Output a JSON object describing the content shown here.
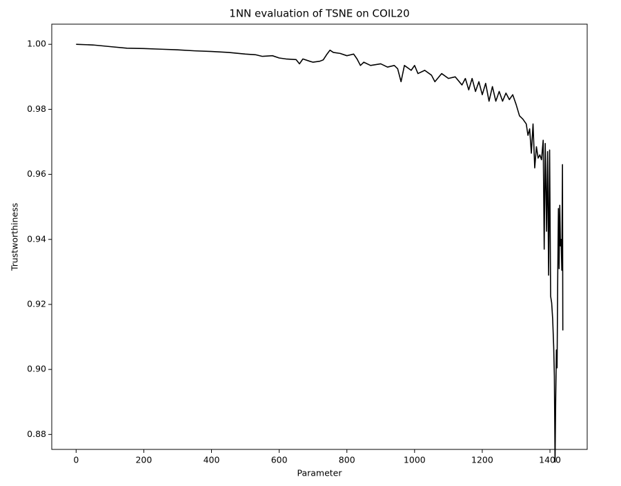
{
  "chart_data": {
    "type": "line",
    "title": "1NN evaluation of TSNE on COIL20",
    "x_label": "Parameter",
    "y_label": "Trustworthiness",
    "color": "#000000",
    "x": [
      0,
      50,
      100,
      150,
      200,
      250,
      300,
      350,
      400,
      450,
      500,
      530,
      550,
      580,
      600,
      620,
      650,
      660,
      670,
      690,
      700,
      720,
      730,
      740,
      750,
      760,
      780,
      800,
      820,
      830,
      840,
      850,
      870,
      900,
      920,
      940,
      950,
      960,
      970,
      990,
      1000,
      1010,
      1030,
      1050,
      1060,
      1080,
      1100,
      1120,
      1140,
      1150,
      1160,
      1170,
      1180,
      1190,
      1200,
      1210,
      1220,
      1230,
      1240,
      1250,
      1260,
      1270,
      1280,
      1290,
      1300,
      1310,
      1320,
      1330,
      1335,
      1340,
      1345,
      1350,
      1355,
      1360,
      1365,
      1370,
      1375,
      1380,
      1383,
      1386,
      1390,
      1393,
      1396,
      1399,
      1402,
      1405,
      1408,
      1411,
      1413,
      1415,
      1417,
      1419,
      1421,
      1423,
      1425,
      1427,
      1429,
      1431,
      1433,
      1435,
      1437,
      1438
    ],
    "values": [
      1.0,
      0.9998,
      0.9993,
      0.9988,
      0.9987,
      0.9985,
      0.9983,
      0.998,
      0.9978,
      0.9975,
      0.997,
      0.9968,
      0.9963,
      0.9965,
      0.9958,
      0.9955,
      0.9953,
      0.994,
      0.9955,
      0.9948,
      0.9945,
      0.9948,
      0.9952,
      0.9968,
      0.9982,
      0.9975,
      0.9972,
      0.9965,
      0.997,
      0.9955,
      0.9935,
      0.9945,
      0.9935,
      0.994,
      0.993,
      0.9935,
      0.9925,
      0.9885,
      0.9935,
      0.992,
      0.9935,
      0.991,
      0.992,
      0.9905,
      0.9885,
      0.991,
      0.9895,
      0.99,
      0.9875,
      0.9895,
      0.986,
      0.9895,
      0.9855,
      0.9885,
      0.9845,
      0.988,
      0.9825,
      0.987,
      0.9825,
      0.9855,
      0.9825,
      0.985,
      0.983,
      0.9845,
      0.9815,
      0.978,
      0.977,
      0.9755,
      0.972,
      0.974,
      0.9665,
      0.9755,
      0.962,
      0.9685,
      0.965,
      0.966,
      0.9645,
      0.9705,
      0.937,
      0.9695,
      0.9425,
      0.967,
      0.929,
      0.9675,
      0.9225,
      0.9205,
      0.9155,
      0.907,
      0.898,
      0.8715,
      0.891,
      0.906,
      0.9005,
      0.929,
      0.9495,
      0.931,
      0.9505,
      0.938,
      0.94,
      0.9305,
      0.963,
      0.912
    ],
    "xlim": [
      -72,
      1510
    ],
    "ylim": [
      0.8754,
      1.0062
    ],
    "xticks": [
      0,
      200,
      400,
      600,
      800,
      1000,
      1200,
      1400
    ],
    "yticks": [
      0.88,
      {
        "value": 0.9,
        "label": "0.90"
      },
      0.92,
      0.94,
      0.96,
      0.98,
      {
        "value": 1.0,
        "label": "1.00"
      }
    ]
  }
}
